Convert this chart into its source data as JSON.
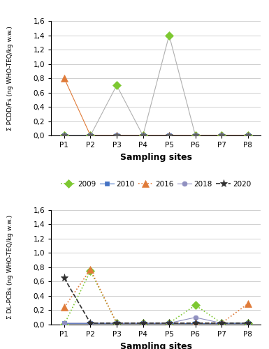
{
  "sites": [
    "P1",
    "P2",
    "P3",
    "P4",
    "P5",
    "P6",
    "P7",
    "P8"
  ],
  "top": {
    "ylabel": "Σ PCDD/Fs (ng WHO-TEQ/kg w.w.)",
    "xlabel": "Sampling sites",
    "ylim": [
      0,
      1.6
    ],
    "yticks": [
      0.0,
      0.2,
      0.4,
      0.6,
      0.8,
      1.0,
      1.2,
      1.4,
      1.6
    ],
    "series": [
      {
        "year": "2009",
        "values": [
          0.0,
          0.0,
          0.7,
          0.0,
          1.4,
          0.0,
          0.0,
          0.0
        ],
        "color": "#7dc831",
        "line_color": "#b0b0b0",
        "marker": "D",
        "linestyle": "-",
        "linewidth": 0.8,
        "markersize": 6,
        "markeredgecolor": "#7dc831"
      },
      {
        "year": "2010",
        "values": [
          0.0,
          0.0,
          0.0,
          0.0,
          0.0,
          0.0,
          0.0,
          0.0
        ],
        "color": "#4472c4",
        "line_color": "#4472c4",
        "marker": "s",
        "linestyle": "-",
        "linewidth": 0.8,
        "markersize": 5,
        "markeredgecolor": "#4472c4"
      },
      {
        "year": "2016",
        "values": [
          0.8,
          0.0,
          0.0,
          0.0,
          0.0,
          0.0,
          0.0,
          0.0
        ],
        "color": "#e07b39",
        "line_color": "#e07b39",
        "marker": "^",
        "linestyle": "-",
        "linewidth": 0.8,
        "markersize": 7,
        "markeredgecolor": "#e07b39"
      },
      {
        "year": "2018",
        "values": [
          0.0,
          0.0,
          0.0,
          0.0,
          0.0,
          0.0,
          0.0,
          0.0
        ],
        "color": "#9090c0",
        "line_color": "#9090c0",
        "marker": "o",
        "linestyle": "--",
        "linewidth": 0.8,
        "markersize": 5,
        "markeredgecolor": "#9090c0"
      },
      {
        "year": "2020",
        "values": [
          0.0,
          0.0,
          0.0,
          0.0,
          0.0,
          0.0,
          0.0,
          0.0
        ],
        "color": "#606060",
        "line_color": "#606060",
        "marker": "*",
        "linestyle": "-",
        "linewidth": 0.8,
        "markersize": 7,
        "markeredgecolor": "#606060"
      }
    ]
  },
  "bottom": {
    "ylabel": "Σ DL-PCBs (ng WHO-TEQ/kg w.w.)",
    "xlabel": "Sampling sites",
    "ylim": [
      0,
      1.6
    ],
    "yticks": [
      0.0,
      0.2,
      0.4,
      0.6,
      0.8,
      1.0,
      1.2,
      1.4,
      1.6
    ],
    "series": [
      {
        "year": "2009",
        "values": [
          0.0,
          0.75,
          0.02,
          0.02,
          0.02,
          0.27,
          0.02,
          0.02
        ],
        "color": "#7dc831",
        "line_color": "#7dc831",
        "marker": "D",
        "linestyle": ":",
        "linewidth": 1.2,
        "markersize": 6,
        "markeredgecolor": "#7dc831"
      },
      {
        "year": "2010",
        "values": [
          0.02,
          0.02,
          0.02,
          0.02,
          0.02,
          0.02,
          0.02,
          0.02
        ],
        "color": "#4472c4",
        "line_color": "#4472c4",
        "marker": "s",
        "linestyle": "-",
        "linewidth": 0.8,
        "markersize": 5,
        "markeredgecolor": "#4472c4"
      },
      {
        "year": "2016",
        "values": [
          0.24,
          0.77,
          0.02,
          0.02,
          0.02,
          0.02,
          0.02,
          0.29
        ],
        "color": "#e07b39",
        "line_color": "#e07b39",
        "marker": "^",
        "linestyle": ":",
        "linewidth": 1.2,
        "markersize": 7,
        "markeredgecolor": "#e07b39"
      },
      {
        "year": "2018",
        "values": [
          0.02,
          0.02,
          0.02,
          0.02,
          0.02,
          0.1,
          0.02,
          0.02
        ],
        "color": "#9090c0",
        "line_color": "#9090c0",
        "marker": "o",
        "linestyle": "-",
        "linewidth": 0.8,
        "markersize": 5,
        "markeredgecolor": "#9090c0"
      },
      {
        "year": "2020",
        "values": [
          0.65,
          0.02,
          0.02,
          0.02,
          0.02,
          0.02,
          0.02,
          0.02
        ],
        "color": "#303030",
        "line_color": "#303030",
        "marker": "*",
        "linestyle": "--",
        "linewidth": 1.2,
        "markersize": 8,
        "markeredgecolor": "#303030"
      }
    ]
  },
  "legend_years": [
    "2009",
    "2010",
    "2016",
    "2018",
    "2020"
  ],
  "background_color": "#ffffff",
  "grid_color": "#c8c8c8"
}
